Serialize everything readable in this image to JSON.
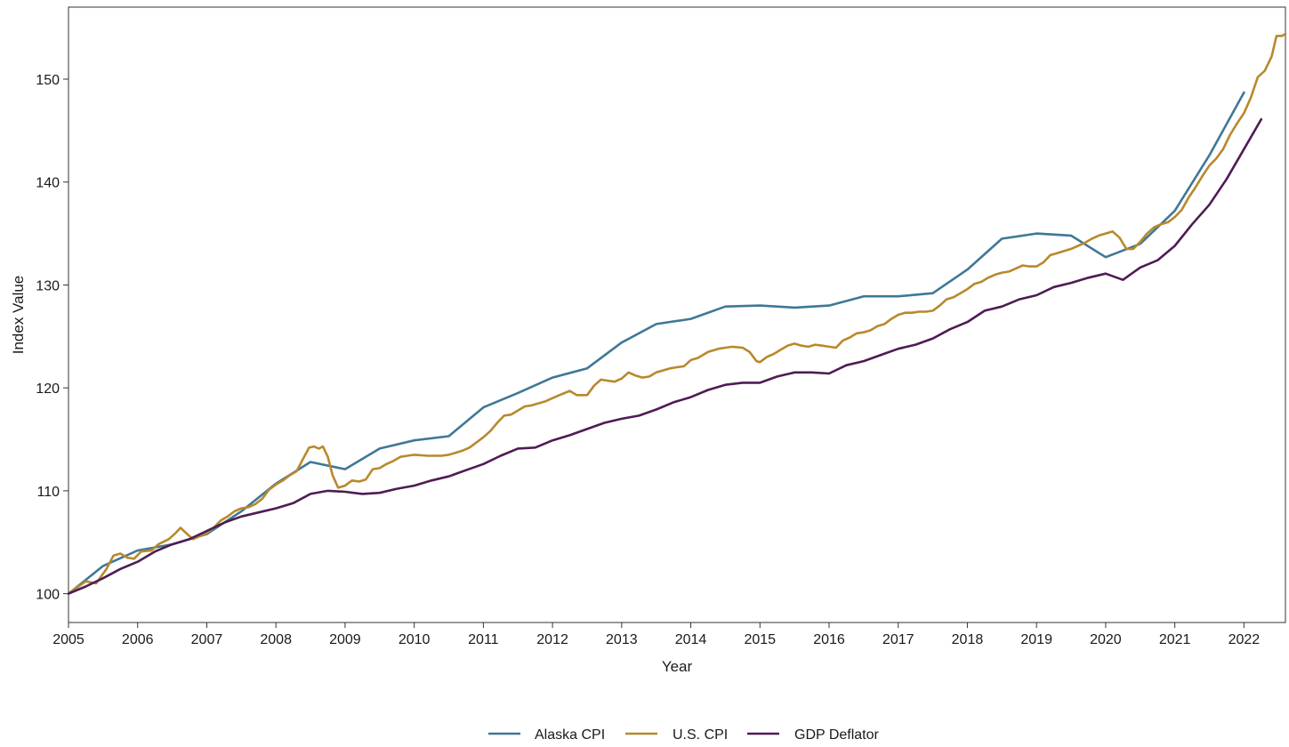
{
  "chart_data": {
    "type": "line",
    "title": "",
    "xlabel": "Year",
    "ylabel": "Index Value",
    "xlim": [
      2005.0,
      2022.6
    ],
    "ylim": [
      97.2,
      157.0
    ],
    "xticks": [
      2005,
      2006,
      2007,
      2008,
      2009,
      2010,
      2011,
      2012,
      2013,
      2014,
      2015,
      2016,
      2017,
      2018,
      2019,
      2020,
      2021,
      2022
    ],
    "xtick_labels": [
      "2005",
      "2006",
      "2007",
      "2008",
      "2009",
      "2010",
      "2011",
      "2012",
      "2013",
      "2014",
      "2015",
      "2016",
      "2017",
      "2018",
      "2019",
      "2020",
      "2021",
      "2022"
    ],
    "yticks": [
      100,
      110,
      120,
      130,
      140,
      150
    ],
    "ytick_labels": [
      "100",
      "110",
      "120",
      "130",
      "140",
      "150"
    ],
    "grid": false,
    "legend_position": "bottom",
    "series": [
      {
        "name": "Alaska CPI",
        "color": "#3f7896",
        "points": [
          [
            2005.0,
            100.0
          ],
          [
            2005.5,
            102.7
          ],
          [
            2006.0,
            104.2
          ],
          [
            2006.5,
            104.8
          ],
          [
            2007.0,
            105.8
          ],
          [
            2007.5,
            108.0
          ],
          [
            2008.0,
            110.7
          ],
          [
            2008.5,
            112.8
          ],
          [
            2009.0,
            112.1
          ],
          [
            2009.5,
            114.1
          ],
          [
            2010.0,
            114.9
          ],
          [
            2010.5,
            115.3
          ],
          [
            2011.0,
            118.1
          ],
          [
            2011.5,
            119.5
          ],
          [
            2012.0,
            121.0
          ],
          [
            2012.5,
            121.9
          ],
          [
            2013.0,
            124.4
          ],
          [
            2013.5,
            126.2
          ],
          [
            2014.0,
            126.7
          ],
          [
            2014.5,
            127.9
          ],
          [
            2015.0,
            128.0
          ],
          [
            2015.5,
            127.8
          ],
          [
            2016.0,
            128.0
          ],
          [
            2016.5,
            128.9
          ],
          [
            2017.0,
            128.9
          ],
          [
            2017.5,
            129.2
          ],
          [
            2018.0,
            131.5
          ],
          [
            2018.5,
            134.5
          ],
          [
            2019.0,
            135.0
          ],
          [
            2019.5,
            134.8
          ],
          [
            2020.0,
            132.7
          ],
          [
            2020.5,
            134.0
          ],
          [
            2021.0,
            137.2
          ],
          [
            2021.5,
            142.6
          ],
          [
            2022.0,
            148.7
          ]
        ]
      },
      {
        "name": "U.S. CPI",
        "color": "#b8892c",
        "points": [
          [
            2005.0,
            100.0
          ],
          [
            2005.25,
            101.2
          ],
          [
            2005.4,
            101.0
          ],
          [
            2005.55,
            102.4
          ],
          [
            2005.65,
            103.7
          ],
          [
            2005.75,
            103.9
          ],
          [
            2005.85,
            103.5
          ],
          [
            2005.95,
            103.4
          ],
          [
            2006.05,
            104.1
          ],
          [
            2006.2,
            104.2
          ],
          [
            2006.3,
            104.8
          ],
          [
            2006.45,
            105.3
          ],
          [
            2006.55,
            105.9
          ],
          [
            2006.62,
            106.4
          ],
          [
            2006.7,
            105.9
          ],
          [
            2006.8,
            105.3
          ],
          [
            2006.9,
            105.6
          ],
          [
            2007.0,
            105.9
          ],
          [
            2007.1,
            106.4
          ],
          [
            2007.2,
            107.1
          ],
          [
            2007.3,
            107.5
          ],
          [
            2007.4,
            108.0
          ],
          [
            2007.5,
            108.3
          ],
          [
            2007.6,
            108.4
          ],
          [
            2007.7,
            108.7
          ],
          [
            2007.8,
            109.2
          ],
          [
            2007.9,
            110.1
          ],
          [
            2008.0,
            110.6
          ],
          [
            2008.1,
            111.0
          ],
          [
            2008.2,
            111.5
          ],
          [
            2008.3,
            111.9
          ],
          [
            2008.4,
            113.2
          ],
          [
            2008.48,
            114.2
          ],
          [
            2008.55,
            114.3
          ],
          [
            2008.62,
            114.1
          ],
          [
            2008.68,
            114.3
          ],
          [
            2008.75,
            113.3
          ],
          [
            2008.82,
            111.5
          ],
          [
            2008.9,
            110.3
          ],
          [
            2009.0,
            110.5
          ],
          [
            2009.1,
            111.0
          ],
          [
            2009.2,
            110.9
          ],
          [
            2009.3,
            111.1
          ],
          [
            2009.4,
            112.1
          ],
          [
            2009.5,
            112.2
          ],
          [
            2009.6,
            112.6
          ],
          [
            2009.7,
            112.9
          ],
          [
            2009.8,
            113.3
          ],
          [
            2009.9,
            113.4
          ],
          [
            2010.0,
            113.5
          ],
          [
            2010.2,
            113.4
          ],
          [
            2010.4,
            113.4
          ],
          [
            2010.5,
            113.5
          ],
          [
            2010.6,
            113.7
          ],
          [
            2010.7,
            113.9
          ],
          [
            2010.8,
            114.2
          ],
          [
            2010.9,
            114.7
          ],
          [
            2011.0,
            115.2
          ],
          [
            2011.1,
            115.8
          ],
          [
            2011.2,
            116.6
          ],
          [
            2011.3,
            117.3
          ],
          [
            2011.4,
            117.4
          ],
          [
            2011.5,
            117.8
          ],
          [
            2011.6,
            118.2
          ],
          [
            2011.7,
            118.3
          ],
          [
            2011.8,
            118.5
          ],
          [
            2011.9,
            118.7
          ],
          [
            2012.0,
            119.0
          ],
          [
            2012.1,
            119.3
          ],
          [
            2012.25,
            119.7
          ],
          [
            2012.35,
            119.3
          ],
          [
            2012.5,
            119.3
          ],
          [
            2012.6,
            120.2
          ],
          [
            2012.7,
            120.8
          ],
          [
            2012.8,
            120.7
          ],
          [
            2012.9,
            120.6
          ],
          [
            2013.0,
            120.9
          ],
          [
            2013.1,
            121.5
          ],
          [
            2013.2,
            121.2
          ],
          [
            2013.3,
            121.0
          ],
          [
            2013.4,
            121.1
          ],
          [
            2013.5,
            121.5
          ],
          [
            2013.6,
            121.7
          ],
          [
            2013.7,
            121.9
          ],
          [
            2013.8,
            122.0
          ],
          [
            2013.9,
            122.1
          ],
          [
            2014.0,
            122.7
          ],
          [
            2014.1,
            122.9
          ],
          [
            2014.25,
            123.5
          ],
          [
            2014.4,
            123.8
          ],
          [
            2014.5,
            123.9
          ],
          [
            2014.6,
            124.0
          ],
          [
            2014.75,
            123.9
          ],
          [
            2014.85,
            123.5
          ],
          [
            2014.95,
            122.6
          ],
          [
            2015.0,
            122.5
          ],
          [
            2015.1,
            123.0
          ],
          [
            2015.2,
            123.3
          ],
          [
            2015.3,
            123.7
          ],
          [
            2015.4,
            124.1
          ],
          [
            2015.5,
            124.3
          ],
          [
            2015.6,
            124.1
          ],
          [
            2015.7,
            124.0
          ],
          [
            2015.8,
            124.2
          ],
          [
            2015.9,
            124.1
          ],
          [
            2016.0,
            124.0
          ],
          [
            2016.1,
            123.9
          ],
          [
            2016.2,
            124.6
          ],
          [
            2016.3,
            124.9
          ],
          [
            2016.4,
            125.3
          ],
          [
            2016.5,
            125.4
          ],
          [
            2016.6,
            125.6
          ],
          [
            2016.7,
            126.0
          ],
          [
            2016.8,
            126.2
          ],
          [
            2016.9,
            126.7
          ],
          [
            2017.0,
            127.1
          ],
          [
            2017.1,
            127.3
          ],
          [
            2017.2,
            127.3
          ],
          [
            2017.3,
            127.4
          ],
          [
            2017.4,
            127.4
          ],
          [
            2017.5,
            127.5
          ],
          [
            2017.6,
            128.0
          ],
          [
            2017.7,
            128.6
          ],
          [
            2017.8,
            128.8
          ],
          [
            2017.9,
            129.2
          ],
          [
            2018.0,
            129.6
          ],
          [
            2018.1,
            130.1
          ],
          [
            2018.2,
            130.3
          ],
          [
            2018.3,
            130.7
          ],
          [
            2018.4,
            131.0
          ],
          [
            2018.5,
            131.2
          ],
          [
            2018.6,
            131.3
          ],
          [
            2018.7,
            131.6
          ],
          [
            2018.8,
            131.9
          ],
          [
            2018.9,
            131.8
          ],
          [
            2019.0,
            131.8
          ],
          [
            2019.1,
            132.2
          ],
          [
            2019.2,
            132.9
          ],
          [
            2019.3,
            133.1
          ],
          [
            2019.4,
            133.3
          ],
          [
            2019.5,
            133.5
          ],
          [
            2019.6,
            133.8
          ],
          [
            2019.7,
            134.1
          ],
          [
            2019.8,
            134.5
          ],
          [
            2019.9,
            134.8
          ],
          [
            2020.0,
            135.0
          ],
          [
            2020.1,
            135.2
          ],
          [
            2020.2,
            134.6
          ],
          [
            2020.3,
            133.5
          ],
          [
            2020.4,
            133.5
          ],
          [
            2020.5,
            134.2
          ],
          [
            2020.6,
            135.0
          ],
          [
            2020.7,
            135.6
          ],
          [
            2020.8,
            135.9
          ],
          [
            2020.9,
            136.1
          ],
          [
            2021.0,
            136.6
          ],
          [
            2021.1,
            137.3
          ],
          [
            2021.2,
            138.5
          ],
          [
            2021.3,
            139.5
          ],
          [
            2021.4,
            140.6
          ],
          [
            2021.5,
            141.6
          ],
          [
            2021.6,
            142.3
          ],
          [
            2021.7,
            143.2
          ],
          [
            2021.8,
            144.6
          ],
          [
            2021.9,
            145.7
          ],
          [
            2022.0,
            146.7
          ],
          [
            2022.1,
            148.2
          ],
          [
            2022.2,
            150.2
          ],
          [
            2022.3,
            150.8
          ],
          [
            2022.4,
            152.2
          ],
          [
            2022.47,
            154.2
          ],
          [
            2022.55,
            154.2
          ],
          [
            2022.6,
            154.4
          ]
        ]
      },
      {
        "name": "GDP Deflator",
        "color": "#4e1c53",
        "points": [
          [
            2005.0,
            100.0
          ],
          [
            2005.25,
            100.7
          ],
          [
            2005.5,
            101.5
          ],
          [
            2005.75,
            102.4
          ],
          [
            2006.0,
            103.1
          ],
          [
            2006.25,
            104.1
          ],
          [
            2006.5,
            104.8
          ],
          [
            2006.75,
            105.3
          ],
          [
            2007.0,
            106.1
          ],
          [
            2007.25,
            106.9
          ],
          [
            2007.5,
            107.5
          ],
          [
            2007.75,
            107.9
          ],
          [
            2008.0,
            108.3
          ],
          [
            2008.25,
            108.8
          ],
          [
            2008.5,
            109.7
          ],
          [
            2008.75,
            110.0
          ],
          [
            2009.0,
            109.9
          ],
          [
            2009.25,
            109.7
          ],
          [
            2009.5,
            109.8
          ],
          [
            2009.75,
            110.2
          ],
          [
            2010.0,
            110.5
          ],
          [
            2010.25,
            111.0
          ],
          [
            2010.5,
            111.4
          ],
          [
            2010.75,
            112.0
          ],
          [
            2011.0,
            112.6
          ],
          [
            2011.25,
            113.4
          ],
          [
            2011.5,
            114.1
          ],
          [
            2011.75,
            114.2
          ],
          [
            2012.0,
            114.9
          ],
          [
            2012.25,
            115.4
          ],
          [
            2012.5,
            116.0
          ],
          [
            2012.75,
            116.6
          ],
          [
            2013.0,
            117.0
          ],
          [
            2013.25,
            117.3
          ],
          [
            2013.5,
            117.9
          ],
          [
            2013.75,
            118.6
          ],
          [
            2014.0,
            119.1
          ],
          [
            2014.25,
            119.8
          ],
          [
            2014.5,
            120.3
          ],
          [
            2014.75,
            120.5
          ],
          [
            2015.0,
            120.5
          ],
          [
            2015.25,
            121.1
          ],
          [
            2015.5,
            121.5
          ],
          [
            2015.75,
            121.5
          ],
          [
            2016.0,
            121.4
          ],
          [
            2016.25,
            122.2
          ],
          [
            2016.5,
            122.6
          ],
          [
            2016.75,
            123.2
          ],
          [
            2017.0,
            123.8
          ],
          [
            2017.25,
            124.2
          ],
          [
            2017.5,
            124.8
          ],
          [
            2017.75,
            125.7
          ],
          [
            2018.0,
            126.4
          ],
          [
            2018.25,
            127.5
          ],
          [
            2018.5,
            127.9
          ],
          [
            2018.75,
            128.6
          ],
          [
            2019.0,
            129.0
          ],
          [
            2019.25,
            129.8
          ],
          [
            2019.5,
            130.2
          ],
          [
            2019.75,
            130.7
          ],
          [
            2020.0,
            131.1
          ],
          [
            2020.25,
            130.5
          ],
          [
            2020.5,
            131.7
          ],
          [
            2020.75,
            132.4
          ],
          [
            2021.0,
            133.8
          ],
          [
            2021.25,
            135.9
          ],
          [
            2021.5,
            137.8
          ],
          [
            2021.75,
            140.3
          ],
          [
            2022.0,
            143.2
          ],
          [
            2022.25,
            146.1
          ]
        ]
      }
    ]
  }
}
